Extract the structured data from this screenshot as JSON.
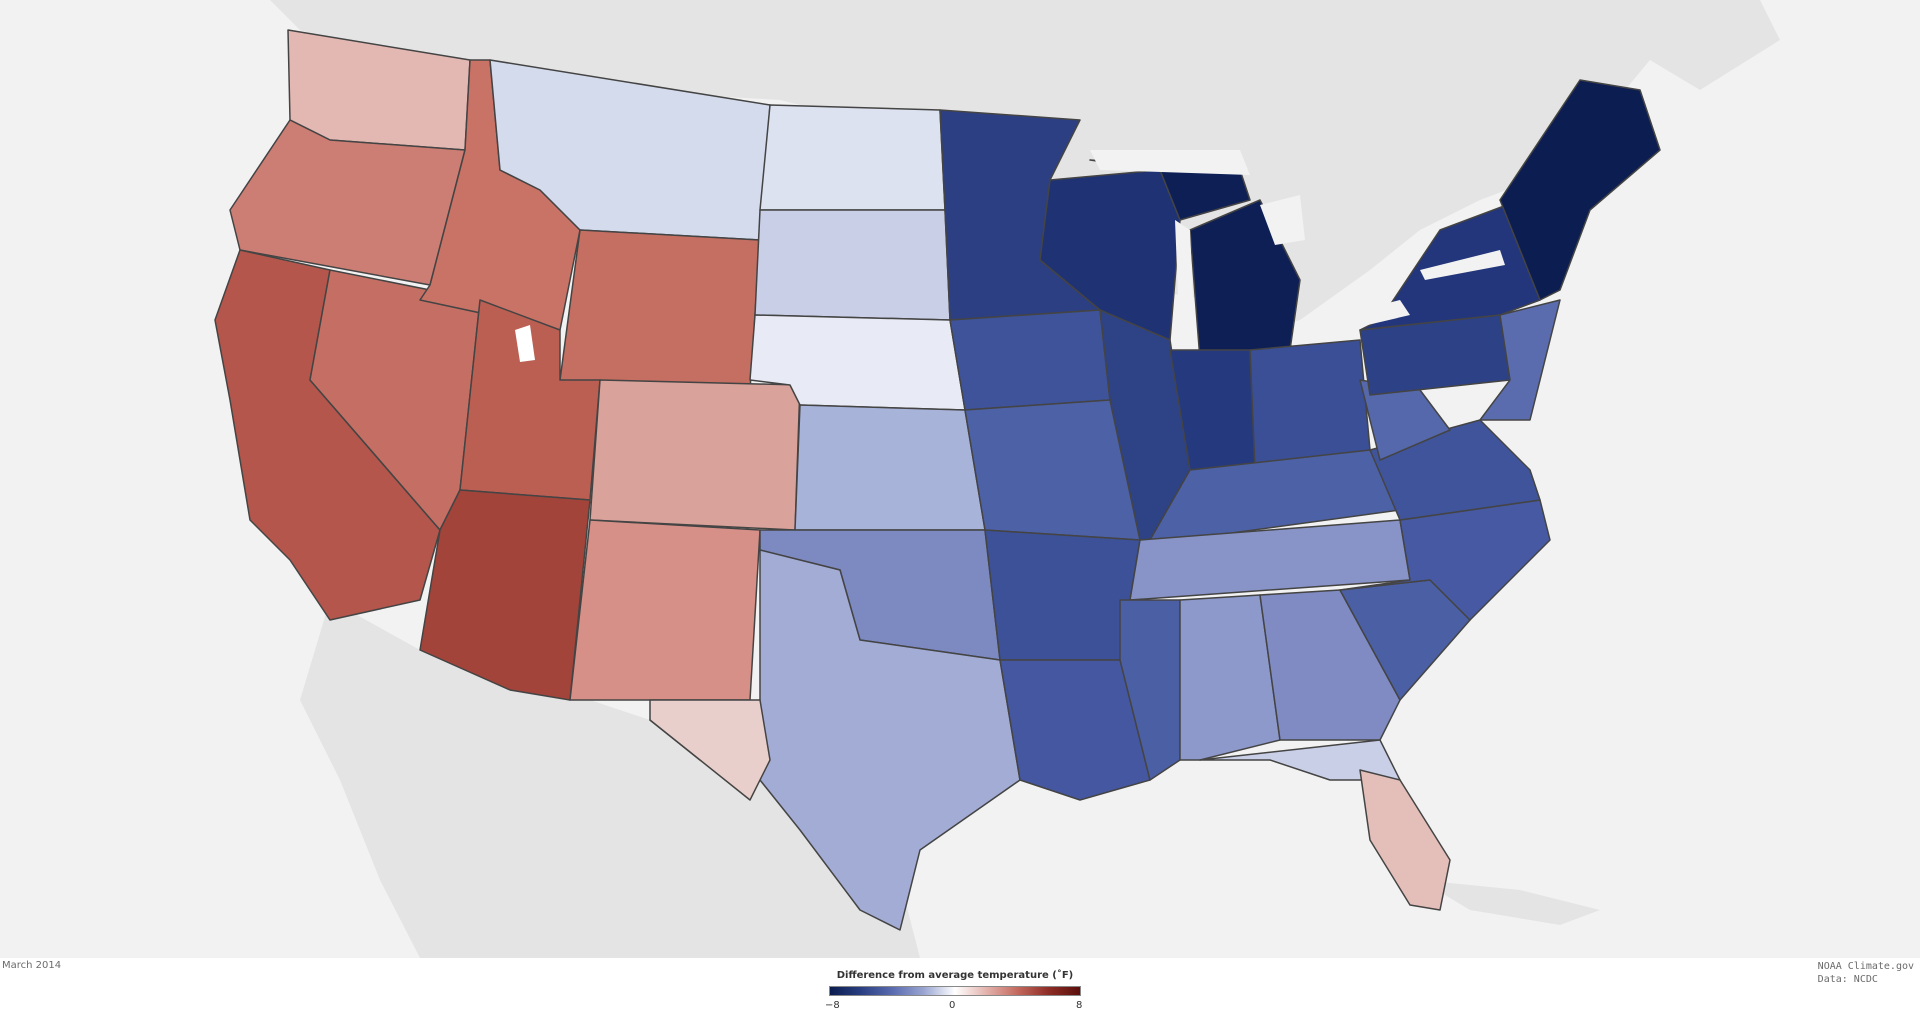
{
  "map": {
    "legend_title": "Difference from average temperature (˚F)",
    "legend_min": "−8",
    "legend_mid": "0",
    "legend_max": "8",
    "scale_colors": [
      "#0b1d4f",
      "#2a3f82",
      "#5a6bb0",
      "#9aa5d2",
      "#ffffff",
      "#e3b3ad",
      "#c4695e",
      "#8e2c26",
      "#5a0f0c"
    ],
    "date": "March 2014",
    "credit_line1": "NOAA Climate.gov",
    "credit_line2": "Data: NCDC"
  }
}
